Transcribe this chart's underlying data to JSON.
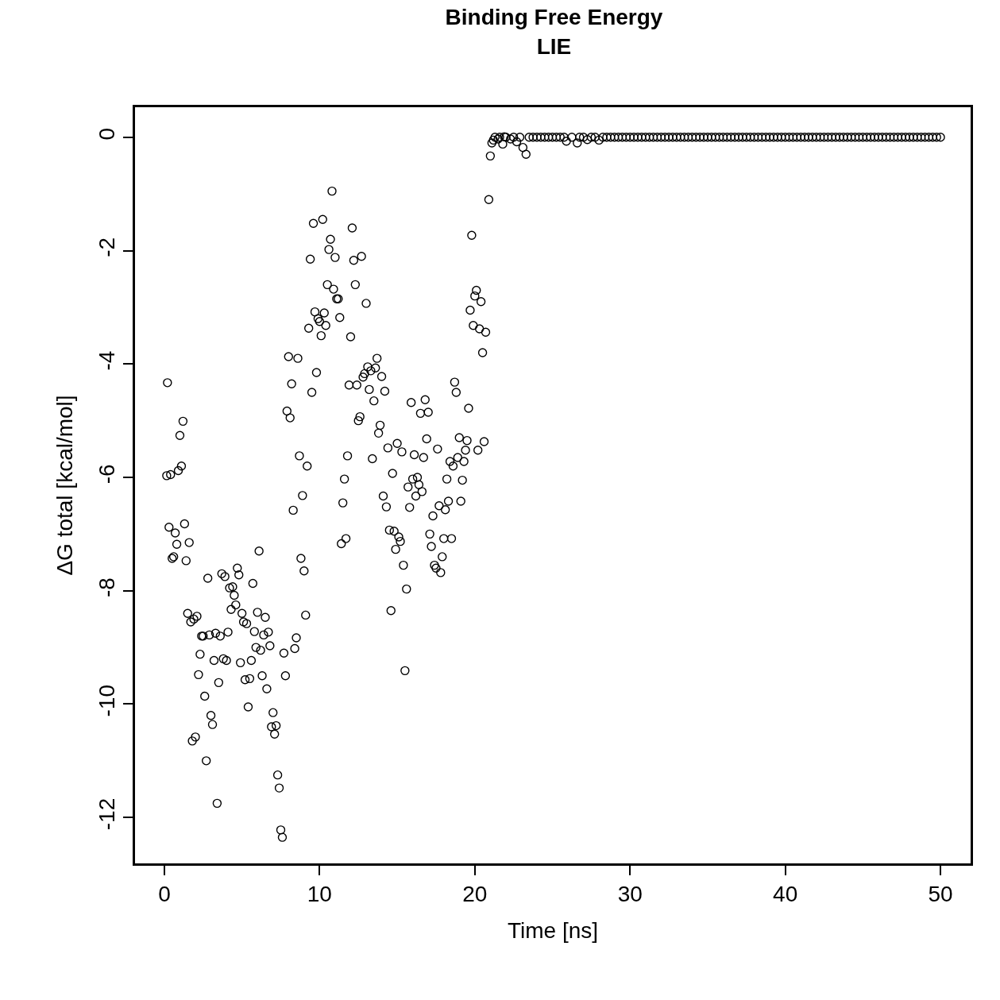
{
  "chart_data": {
    "type": "scatter",
    "title": "Binding Free Energy\nLIE",
    "xlabel": "Time [ns]",
    "ylabel": "ΔG total [kcal/mol]",
    "xlim": [
      -1.89,
      51.94
    ],
    "ylim": [
      -12.81,
      0.53
    ],
    "xticks": [
      0,
      10,
      20,
      30,
      40,
      50
    ],
    "yticks": [
      0,
      -2,
      -4,
      -6,
      -8,
      -10,
      -12
    ],
    "marker": "circle",
    "series": [
      {
        "color": "#000000",
        "x": [
          0.15,
          0.2,
          0.3,
          0.4,
          0.5,
          0.6,
          0.7,
          0.8,
          0.9,
          1.0,
          1.1,
          1.2,
          1.3,
          1.4,
          1.5,
          1.6,
          1.7,
          1.8,
          1.9,
          2.0,
          2.1,
          2.2,
          2.3,
          2.4,
          2.5,
          2.6,
          2.7,
          2.8,
          2.9,
          3.0,
          3.1,
          3.2,
          3.3,
          3.4,
          3.5,
          3.6,
          3.7,
          3.8,
          3.9,
          4.0,
          4.1,
          4.2,
          4.3,
          4.4,
          4.5,
          4.6,
          4.7,
          4.8,
          4.9,
          5.0,
          5.1,
          5.2,
          5.3,
          5.4,
          5.5,
          5.6,
          5.7,
          5.8,
          5.9,
          6.0,
          6.1,
          6.2,
          6.3,
          6.4,
          6.5,
          6.6,
          6.7,
          6.8,
          6.9,
          7.0,
          7.1,
          7.2,
          7.3,
          7.4,
          7.5,
          7.6,
          7.7,
          7.8,
          7.9,
          8.0,
          8.1,
          8.2,
          8.3,
          8.4,
          8.5,
          8.6,
          8.7,
          8.8,
          8.9,
          9.0,
          9.1,
          9.2,
          9.3,
          9.4,
          9.5,
          9.6,
          9.7,
          9.8,
          9.9,
          10.0,
          10.1,
          10.2,
          10.3,
          10.4,
          10.5,
          10.6,
          10.7,
          10.8,
          10.9,
          11.0,
          11.1,
          11.2,
          11.3,
          11.4,
          11.5,
          11.6,
          11.7,
          11.8,
          11.9,
          12.0,
          12.1,
          12.2,
          12.3,
          12.4,
          12.5,
          12.6,
          12.7,
          12.8,
          12.9,
          13.0,
          13.1,
          13.2,
          13.3,
          13.4,
          13.5,
          13.6,
          13.7,
          13.8,
          13.9,
          14.0,
          14.1,
          14.2,
          14.3,
          14.4,
          14.5,
          14.6,
          14.7,
          14.8,
          14.9,
          15.0,
          15.1,
          15.2,
          15.3,
          15.4,
          15.5,
          15.6,
          15.7,
          15.8,
          15.9,
          16.0,
          16.1,
          16.2,
          16.3,
          16.4,
          16.5,
          16.6,
          16.7,
          16.8,
          16.9,
          17.0,
          17.1,
          17.2,
          17.3,
          17.4,
          17.5,
          17.6,
          17.7,
          17.8,
          17.9,
          18.0,
          18.1,
          18.2,
          18.3,
          18.4,
          18.5,
          18.6,
          18.7,
          18.8,
          18.9,
          19.0,
          19.1,
          19.2,
          19.3,
          19.4,
          19.5,
          19.6,
          19.7,
          19.8,
          19.9,
          20.0,
          20.1,
          20.2,
          20.3,
          20.4,
          20.5,
          20.6,
          20.7,
          20.9,
          21.0,
          21.1,
          21.2,
          21.3,
          21.5,
          21.6,
          21.8,
          21.9,
          22.0,
          22.3,
          22.5,
          22.7,
          22.9,
          23.1,
          23.3,
          23.5,
          23.75,
          24.0,
          24.25,
          24.5,
          24.75,
          25.0,
          25.25,
          25.5,
          25.75,
          25.9,
          26.25,
          26.6,
          26.75,
          27.0,
          27.25,
          27.5,
          27.75,
          28.0,
          28.25,
          28.5,
          28.75,
          29.0,
          29.25,
          29.5,
          29.75,
          30.0,
          30.25,
          30.5,
          30.75,
          31.0,
          31.25,
          31.5,
          31.75,
          32.0,
          32.25,
          32.5,
          32.75,
          33.0,
          33.25,
          33.5,
          33.75,
          34.0,
          34.25,
          34.5,
          34.75,
          35.0,
          35.25,
          35.5,
          35.75,
          36.0,
          36.25,
          36.5,
          36.75,
          37.0,
          37.25,
          37.5,
          37.75,
          38.0,
          38.25,
          38.5,
          38.75,
          39.0,
          39.25,
          39.5,
          39.75,
          40.0,
          40.25,
          40.5,
          40.75,
          41.0,
          41.25,
          41.5,
          41.75,
          42.0,
          42.25,
          42.5,
          42.75,
          43.0,
          43.25,
          43.5,
          43.75,
          44.0,
          44.25,
          44.5,
          44.75,
          45.0,
          45.25,
          45.5,
          45.75,
          46.0,
          46.25,
          46.5,
          46.75,
          47.0,
          47.25,
          47.5,
          47.75,
          48.0,
          48.25,
          48.5,
          48.75,
          49.0,
          49.25,
          49.5,
          49.75,
          50.0
        ],
        "values": [
          -5.97,
          -4.33,
          -6.88,
          -5.95,
          -7.43,
          -7.4,
          -6.98,
          -7.18,
          -5.88,
          -5.26,
          -5.8,
          -5.01,
          -6.82,
          -7.47,
          -8.4,
          -7.15,
          -8.55,
          -10.65,
          -8.5,
          -10.58,
          -8.45,
          -9.48,
          -9.12,
          -8.8,
          -8.8,
          -9.86,
          -11.0,
          -7.78,
          -8.78,
          -10.2,
          -10.36,
          -9.23,
          -8.75,
          -11.75,
          -9.62,
          -8.8,
          -7.7,
          -9.2,
          -7.75,
          -9.23,
          -8.73,
          -7.95,
          -8.33,
          -7.93,
          -8.08,
          -8.25,
          -7.6,
          -7.72,
          -9.27,
          -8.4,
          -8.55,
          -9.57,
          -8.58,
          -10.05,
          -9.55,
          -9.23,
          -7.87,
          -8.72,
          -9.0,
          -8.38,
          -7.3,
          -9.05,
          -9.5,
          -8.78,
          -8.47,
          -9.73,
          -8.73,
          -8.97,
          -10.4,
          -10.15,
          -10.53,
          -10.38,
          -11.25,
          -11.48,
          -12.22,
          -12.35,
          -9.1,
          -9.5,
          -4.83,
          -3.87,
          -4.95,
          -4.35,
          -6.58,
          -9.02,
          -8.83,
          -3.9,
          -5.62,
          -7.43,
          -6.32,
          -7.65,
          -8.43,
          -5.8,
          -3.37,
          -2.15,
          -4.5,
          -1.52,
          -3.08,
          -4.15,
          -3.2,
          -3.25,
          -3.5,
          -1.45,
          -3.1,
          -3.32,
          -2.6,
          -1.98,
          -1.8,
          -0.95,
          -2.68,
          -2.12,
          -2.85,
          -2.85,
          -3.18,
          -7.17,
          -6.45,
          -6.03,
          -7.08,
          -5.62,
          -4.37,
          -3.52,
          -1.6,
          -2.17,
          -2.6,
          -4.37,
          -5.0,
          -4.93,
          -2.1,
          -4.23,
          -4.17,
          -2.93,
          -4.05,
          -4.45,
          -4.12,
          -5.67,
          -4.65,
          -4.07,
          -3.9,
          -5.22,
          -5.08,
          -4.22,
          -6.33,
          -4.48,
          -6.52,
          -5.48,
          -6.93,
          -8.35,
          -5.93,
          -6.95,
          -7.27,
          -5.4,
          -7.05,
          -7.13,
          -5.55,
          -7.55,
          -9.41,
          -7.97,
          -6.17,
          -6.53,
          -4.68,
          -6.03,
          -5.6,
          -6.33,
          -6.0,
          -6.13,
          -4.87,
          -6.25,
          -5.65,
          -4.63,
          -5.32,
          -4.85,
          -7.0,
          -7.22,
          -6.68,
          -7.55,
          -7.6,
          -5.5,
          -6.5,
          -7.68,
          -7.4,
          -7.08,
          -6.57,
          -6.03,
          -6.42,
          -5.72,
          -7.08,
          -5.8,
          -4.32,
          -4.5,
          -5.65,
          -5.3,
          -6.42,
          -6.05,
          -5.72,
          -5.52,
          -5.35,
          -4.78,
          -3.05,
          -1.73,
          -3.32,
          -2.8,
          -2.7,
          -5.52,
          -3.38,
          -2.9,
          -3.8,
          -5.37,
          -3.44,
          -1.1,
          -0.33,
          -0.1,
          -0.05,
          0,
          -0.03,
          0,
          -0.12,
          0.01,
          0,
          -0.03,
          0,
          -0.08,
          0,
          -0.18,
          -0.3,
          0,
          0,
          0,
          0,
          0,
          0,
          0,
          0,
          0,
          0,
          -0.07,
          0,
          -0.1,
          0,
          0,
          -0.04,
          0,
          0,
          -0.05,
          0,
          0,
          0,
          0,
          0,
          0,
          0,
          0,
          0,
          0,
          0,
          0,
          0,
          0,
          0,
          0,
          0,
          0,
          0,
          0,
          0,
          0,
          0,
          0,
          0,
          0,
          0,
          0,
          0,
          0,
          0,
          0,
          0,
          0,
          0,
          0,
          0,
          0,
          0,
          0,
          0,
          0,
          0,
          0,
          0,
          0,
          0,
          0,
          0,
          0,
          0,
          0,
          0,
          0,
          0,
          0,
          0,
          0,
          0,
          0,
          0,
          0,
          0,
          0,
          0,
          0,
          0,
          0,
          0,
          0,
          0,
          0,
          0,
          0,
          0,
          0,
          0,
          0,
          0,
          0,
          0,
          0,
          0,
          0,
          0,
          0,
          0,
          0
        ]
      }
    ]
  }
}
